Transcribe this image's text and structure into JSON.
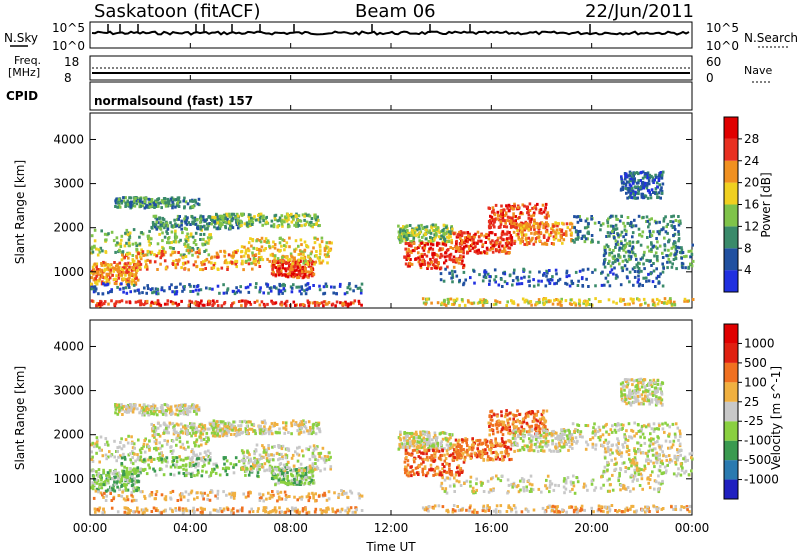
{
  "header": {
    "station": "Saskatoon (fitACF)",
    "beam": "Beam 06",
    "date": "22/Jun/2011"
  },
  "noise_panel": {
    "left_label": "N.Sky",
    "right_label": "N.Search",
    "left_ticks": [
      "10^5",
      "10^0"
    ],
    "right_ticks": [
      "10^5",
      "10^0"
    ]
  },
  "freq_panel": {
    "left_label_1": "Freq.",
    "left_label_2": "[MHz]",
    "right_label": "Nave",
    "left_ticks": [
      "18",
      "8"
    ],
    "right_ticks": [
      "60",
      "0"
    ],
    "cpid_label": "CPID",
    "cpid_value": "normalsound (fast) 157"
  },
  "chart_data": [
    {
      "type": "heatmap",
      "title": "",
      "ylabel": "Slant Range [km]",
      "xlabel": "Time UT",
      "ylim": [
        180,
        4600
      ],
      "yticks": [
        "1000",
        "2000",
        "3000",
        "4000"
      ],
      "colorbar": {
        "label": "Power [dB]",
        "ticks": [
          "4",
          "8",
          "12",
          "16",
          "20",
          "24",
          "28"
        ],
        "colors": [
          "#2030e0",
          "#2050a0",
          "#3a8a6a",
          "#7fc34a",
          "#f0d020",
          "#f09020",
          "#e83020",
          "#e00000"
        ]
      }
    },
    {
      "type": "heatmap",
      "title": "",
      "ylabel": "Slant Range [km]",
      "xlabel": "Time UT",
      "ylim": [
        180,
        4600
      ],
      "yticks": [
        "1000",
        "2000",
        "3000",
        "4000"
      ],
      "colorbar": {
        "label": "Velocity [m s^-1]",
        "ticks": [
          "1000",
          "500",
          "100",
          "25",
          "-25",
          "-100",
          "-500",
          "-1000"
        ],
        "colors": [
          "#2020c0",
          "#2a7ab0",
          "#3a9a50",
          "#8ad040",
          "#c8c8c8",
          "#f0b040",
          "#f07020",
          "#e02010",
          "#e00000"
        ]
      }
    }
  ],
  "x_axis": {
    "label": "Time UT",
    "ticks": [
      "00:00",
      "04:00",
      "08:00",
      "12:00",
      "16:00",
      "20:00",
      "00:00"
    ]
  }
}
